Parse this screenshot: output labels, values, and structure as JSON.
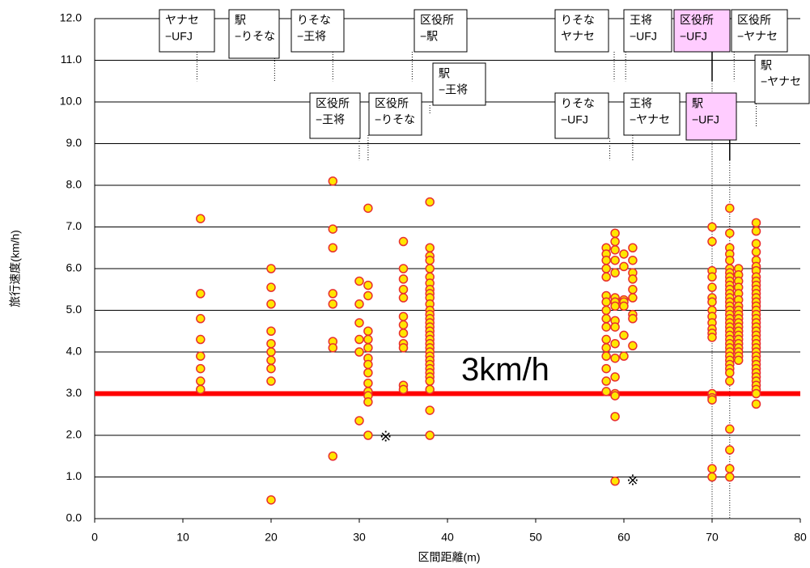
{
  "chart_data": {
    "type": "scatter",
    "xlabel": "区間距離(m)",
    "ylabel": "旅行速度(km/h)",
    "xlim": [
      0,
      80
    ],
    "xticks": [
      0,
      10,
      20,
      30,
      40,
      50,
      60,
      70,
      80
    ],
    "ylim": [
      0,
      12
    ],
    "yticks": [
      {
        "value": 0,
        "label": "0.0"
      },
      {
        "value": 1,
        "label": "1.0"
      },
      {
        "value": 2,
        "label": "2.0"
      },
      {
        "value": 3,
        "label": "3.0"
      },
      {
        "value": 4,
        "label": "4.0"
      },
      {
        "value": 5,
        "label": "5.0"
      },
      {
        "value": 6,
        "label": "6.0"
      },
      {
        "value": 7,
        "label": "7.0"
      },
      {
        "value": 8,
        "label": "8.0"
      },
      {
        "value": 9,
        "label": "9.0"
      },
      {
        "value": 10,
        "label": "10.0"
      },
      {
        "value": 11,
        "label": "11.0"
      },
      {
        "value": 12,
        "label": "12.0"
      }
    ],
    "grid": true,
    "color": "#ffe600",
    "edgecolor": "#e83030",
    "x": [
      12,
      12,
      12,
      12,
      12,
      12,
      12,
      12,
      20,
      20,
      20,
      20,
      20,
      20,
      20,
      20,
      20,
      20,
      27,
      27,
      27,
      27,
      27,
      27,
      27,
      27,
      30,
      30,
      30,
      30,
      30,
      30,
      31,
      31,
      31,
      31,
      31,
      31,
      31,
      31,
      31,
      31,
      31,
      31,
      31,
      31,
      35,
      35,
      35,
      35,
      35,
      35,
      35,
      35,
      35,
      35,
      35,
      35,
      38,
      38,
      38,
      38,
      38,
      38,
      38,
      38,
      38,
      38,
      38,
      38,
      38,
      38,
      38,
      38,
      38,
      38,
      38,
      38,
      38,
      38,
      38,
      38,
      38,
      38,
      38,
      38,
      38,
      38,
      38,
      38,
      58,
      58,
      58,
      58,
      58,
      58,
      58,
      58,
      58,
      58,
      58,
      58,
      58,
      58,
      58,
      58,
      59,
      59,
      59,
      59,
      59,
      59,
      59,
      59,
      59,
      59,
      59,
      59,
      59,
      59,
      59,
      59,
      59,
      60,
      60,
      60,
      60,
      60,
      60,
      60,
      61,
      61,
      61,
      61,
      61,
      61,
      61,
      61,
      61,
      70,
      70,
      70,
      70,
      70,
      70,
      70,
      70,
      70,
      70,
      70,
      70,
      70,
      70,
      70,
      70,
      70,
      70,
      72,
      72,
      72,
      72,
      72,
      72,
      72,
      72,
      72,
      72,
      72,
      72,
      72,
      72,
      72,
      72,
      72,
      72,
      72,
      72,
      72,
      72,
      72,
      72,
      72,
      72,
      72,
      72,
      72,
      72,
      72,
      72,
      72,
      72,
      72,
      72,
      73,
      73,
      73,
      73,
      73,
      73,
      73,
      73,
      73,
      73,
      73,
      73,
      73,
      73,
      73,
      73,
      73,
      73,
      73,
      73,
      75,
      75,
      75,
      75,
      75,
      75,
      75,
      75,
      75,
      75,
      75,
      75,
      75,
      75,
      75,
      75,
      75,
      75,
      75,
      75,
      75,
      75,
      75,
      75,
      75,
      75,
      75,
      75,
      75,
      75,
      75,
      75,
      75,
      75,
      75,
      75,
      75
    ],
    "values": [
      7.2,
      5.4,
      4.8,
      4.3,
      3.9,
      3.6,
      3.3,
      3.1,
      6.0,
      5.55,
      5.15,
      4.5,
      4.2,
      4.0,
      3.8,
      3.6,
      3.3,
      0.45,
      8.1,
      6.95,
      6.5,
      5.4,
      5.15,
      4.25,
      4.1,
      1.5,
      5.7,
      5.15,
      4.7,
      4.3,
      4.0,
      2.35,
      7.45,
      5.6,
      5.35,
      4.5,
      4.3,
      4.1,
      3.85,
      3.7,
      3.5,
      3.25,
      3.05,
      2.95,
      2.8,
      2.0,
      6.65,
      6.0,
      5.75,
      5.5,
      5.3,
      4.85,
      4.65,
      4.45,
      4.2,
      4.1,
      3.2,
      3.1,
      7.6,
      6.5,
      6.3,
      6.2,
      6.0,
      5.8,
      5.65,
      5.5,
      5.4,
      5.3,
      5.15,
      5.0,
      4.9,
      4.8,
      4.7,
      4.6,
      4.5,
      4.4,
      4.3,
      4.2,
      4.1,
      4.0,
      3.9,
      3.8,
      3.7,
      3.6,
      3.5,
      3.4,
      3.3,
      3.1,
      2.6,
      2.0,
      6.5,
      6.35,
      6.2,
      6.0,
      5.8,
      5.35,
      5.2,
      5.0,
      4.8,
      4.6,
      4.3,
      4.1,
      3.9,
      3.6,
      3.3,
      3.05,
      6.85,
      6.65,
      6.45,
      6.2,
      5.9,
      5.3,
      5.2,
      5.1,
      4.75,
      4.6,
      4.2,
      3.85,
      3.4,
      3.0,
      2.95,
      2.45,
      0.9,
      6.35,
      6.05,
      5.25,
      5.2,
      5.1,
      4.4,
      3.9,
      6.5,
      6.2,
      5.9,
      5.75,
      5.5,
      5.3,
      4.9,
      4.8,
      4.15,
      7.0,
      6.65,
      5.95,
      5.8,
      5.55,
      5.3,
      5.2,
      5.0,
      4.85,
      4.7,
      4.55,
      4.45,
      4.35,
      3.0,
      2.9,
      2.85,
      1.2,
      1.0,
      7.45,
      6.85,
      6.5,
      6.35,
      6.2,
      6.0,
      5.9,
      5.8,
      5.7,
      5.6,
      5.5,
      5.4,
      5.3,
      5.2,
      5.1,
      5.0,
      4.9,
      4.8,
      4.7,
      4.6,
      4.5,
      4.4,
      4.3,
      4.2,
      4.1,
      4.0,
      3.9,
      3.8,
      3.7,
      3.6,
      3.5,
      3.3,
      2.15,
      1.65,
      1.2,
      1.0,
      6.0,
      5.85,
      5.7,
      5.55,
      5.4,
      5.25,
      5.1,
      5.0,
      4.9,
      4.8,
      4.7,
      4.6,
      4.5,
      4.4,
      4.3,
      4.2,
      4.1,
      4.0,
      3.9,
      3.8,
      7.1,
      6.9,
      6.6,
      6.4,
      6.2,
      6.05,
      5.95,
      5.8,
      5.7,
      5.6,
      5.5,
      5.4,
      5.3,
      5.2,
      5.1,
      5.0,
      4.9,
      4.8,
      4.7,
      4.6,
      4.5,
      4.4,
      4.3,
      4.2,
      4.1,
      4.0,
      3.9,
      3.8,
      3.7,
      3.6,
      3.5,
      3.4,
      3.3,
      3.2,
      3.1,
      3.0,
      2.75
    ],
    "threshold": {
      "value": 3,
      "label": "3km/h",
      "color": "#ff0000"
    },
    "marks": [
      {
        "text": "※",
        "x": 33,
        "y": 1.95
      },
      {
        "text": "※",
        "x": 61,
        "y": 0.9
      }
    ],
    "annotations": [
      {
        "lines": [
          "ヤナセ",
          "−UFJ"
        ],
        "x": 11.6,
        "y": 10.5
      },
      {
        "lines": [
          "駅",
          "−りそな"
        ],
        "x": 20.4,
        "y": 10.5
      },
      {
        "lines": [
          "りそな",
          "−王将"
        ],
        "x": 27,
        "y": 10.5
      },
      {
        "lines": [
          "区役所",
          "−駅"
        ],
        "x": 36,
        "y": 10.5
      },
      {
        "lines": [
          "りそな",
          "ヤナセ"
        ],
        "x": 58.9,
        "y": 10.5
      },
      {
        "lines": [
          "王将",
          "−UFJ"
        ],
        "x": 60.2,
        "y": 10.5
      },
      {
        "lines": [
          "区役所",
          "−UFJ"
        ],
        "x": 70,
        "y": 10.5,
        "color": "#ffccff"
      },
      {
        "lines": [
          "区役所",
          "−ヤナセ"
        ],
        "x": 72.5,
        "y": 10.5
      },
      {
        "lines": [
          "駅",
          "−ヤナセ"
        ],
        "x": 75,
        "y": 9.4
      },
      {
        "lines": [
          "駅",
          "−王将"
        ],
        "x": 38,
        "y": 9.7
      },
      {
        "lines": [
          "区役所",
          "−王将"
        ],
        "x": 30,
        "y": 8.6
      },
      {
        "lines": [
          "区役所",
          "−りそな"
        ],
        "x": 31,
        "y": 8.6
      },
      {
        "lines": [
          "りそな",
          "−UFJ"
        ],
        "x": 58.4,
        "y": 8.6
      },
      {
        "lines": [
          "王将",
          "−ヤナセ"
        ],
        "x": 61,
        "y": 8.6
      },
      {
        "lines": [
          "駅",
          "−UFJ"
        ],
        "x": 72,
        "y": 8.6,
        "color": "#ffccff"
      }
    ]
  }
}
